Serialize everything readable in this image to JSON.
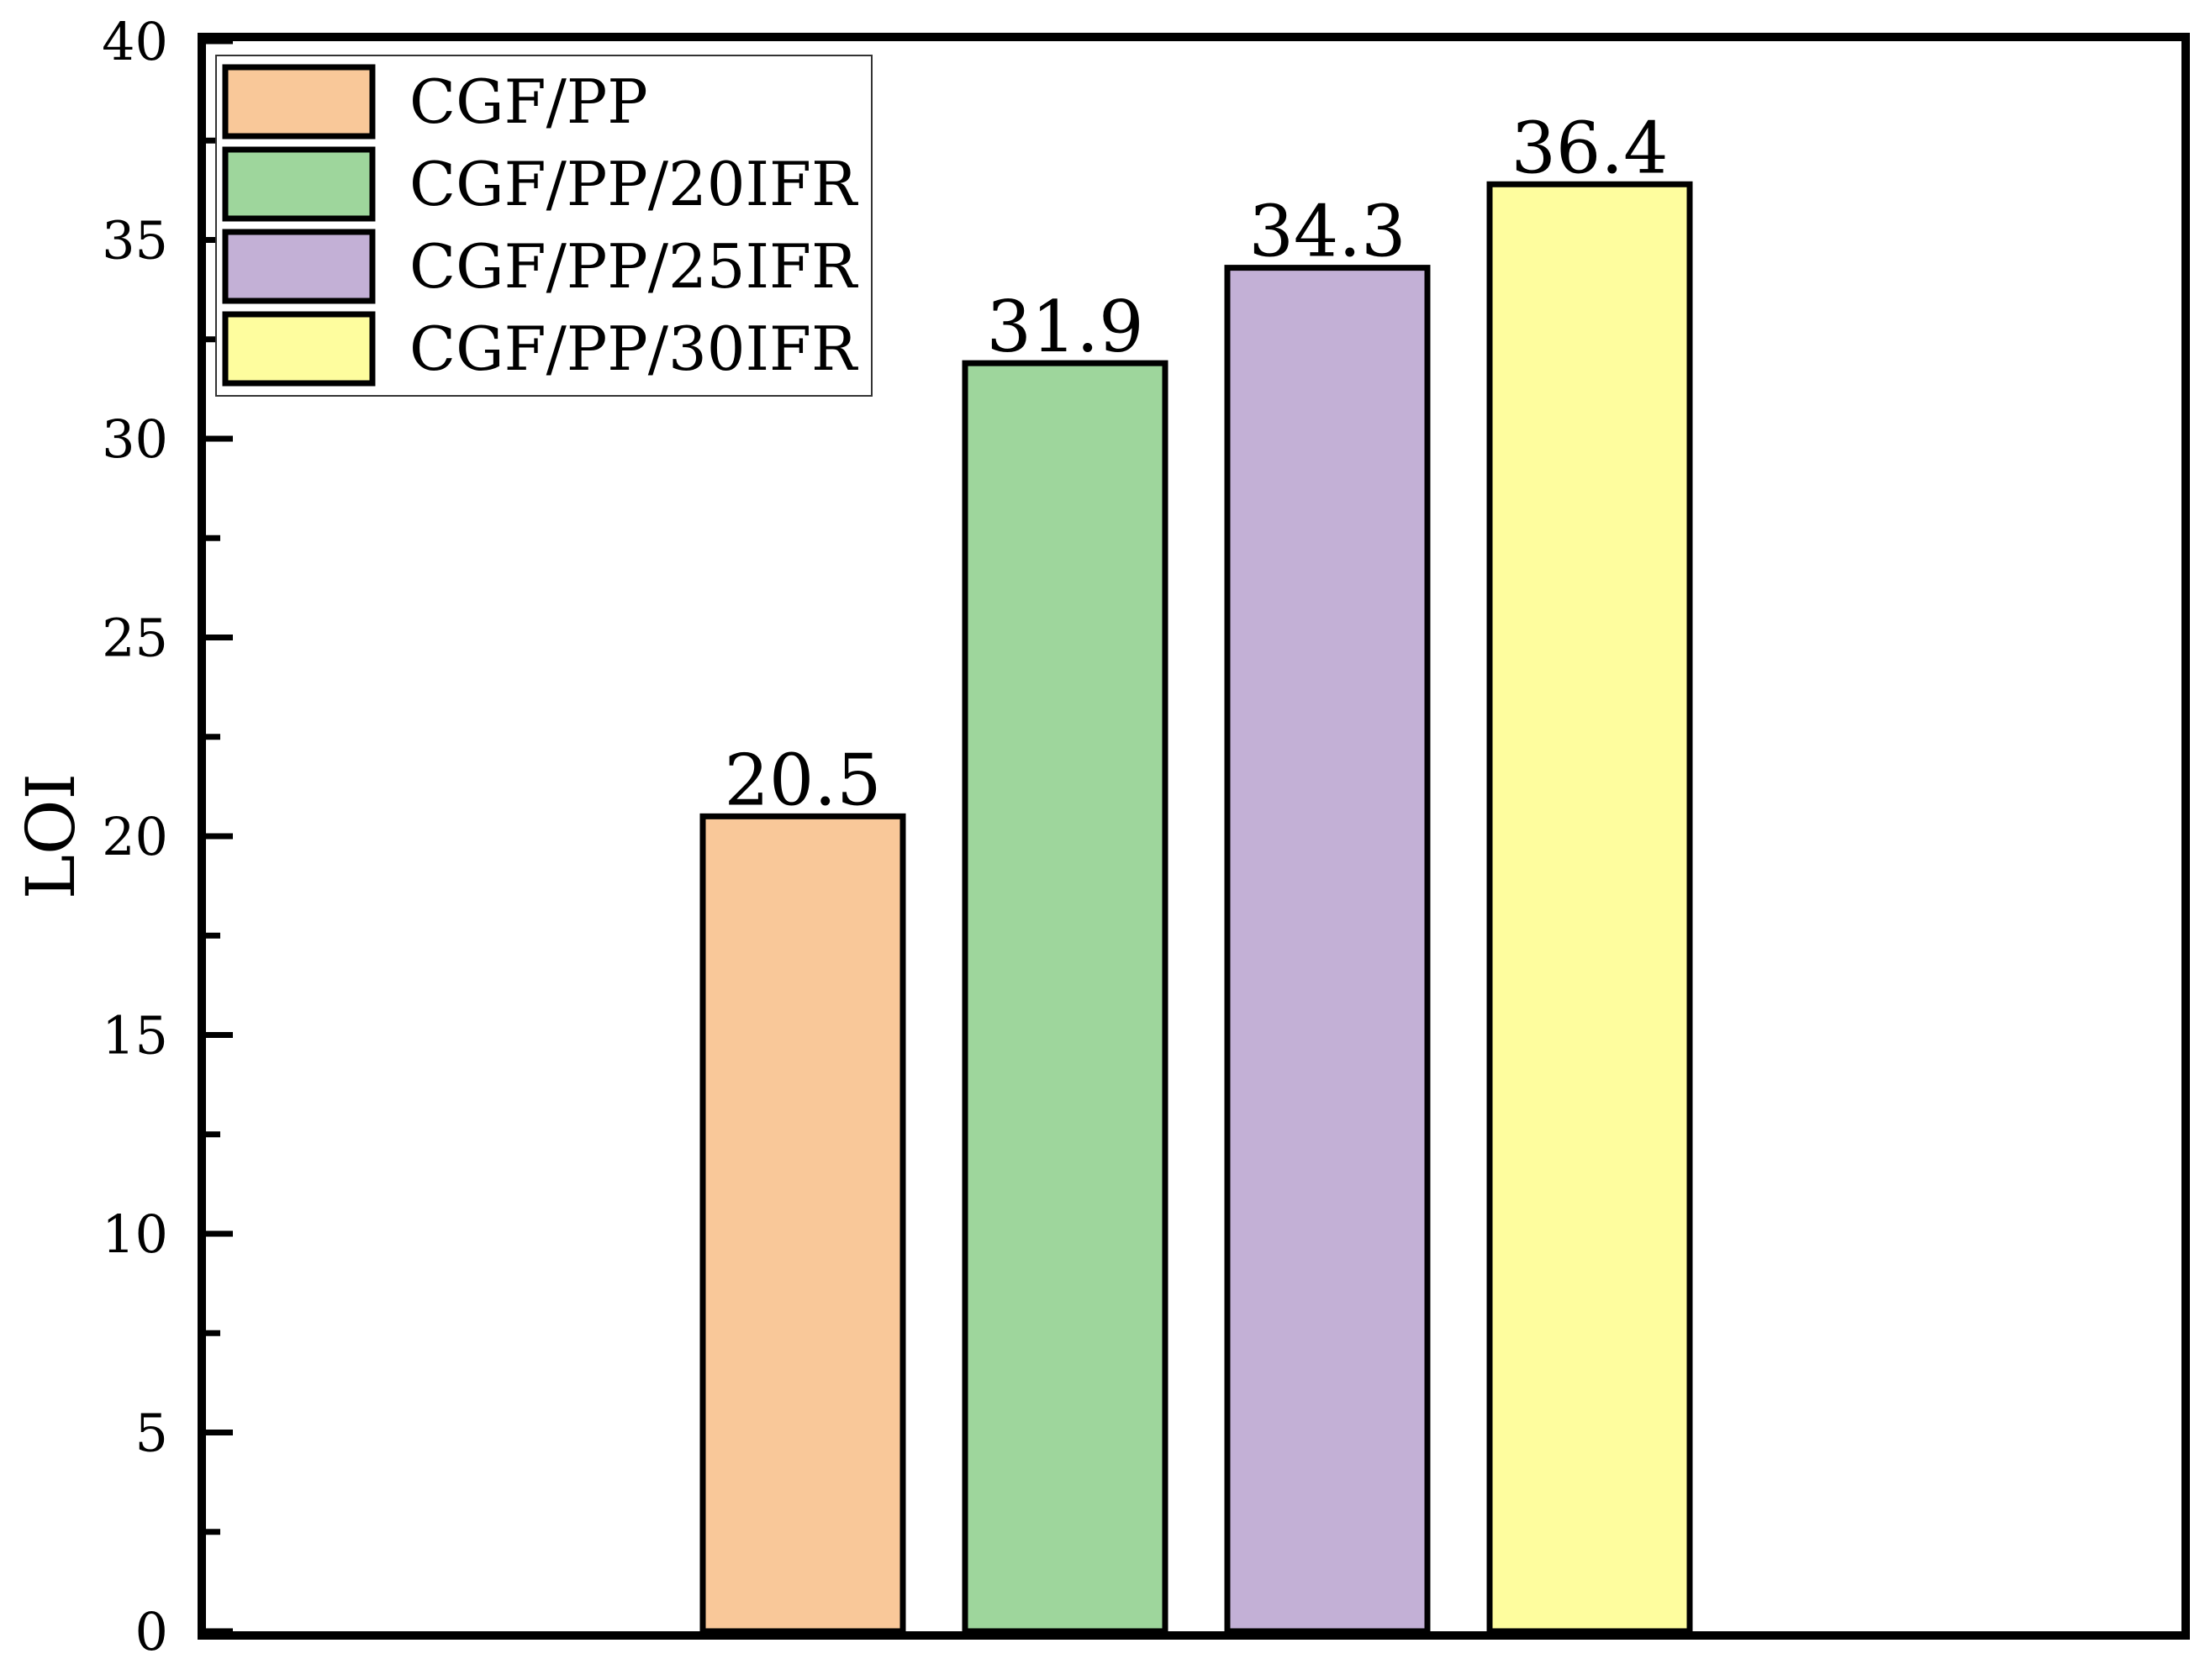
{
  "chart_data": {
    "type": "bar",
    "categories": [
      "CGF/PP",
      "CGF/PP/20IFR",
      "CGF/PP/25IFR",
      "CGF/PP/30IFR"
    ],
    "values": [
      20.5,
      31.9,
      34.3,
      36.4
    ],
    "value_labels": [
      "20.5",
      "31.9",
      "34.3",
      "36.4"
    ],
    "colors": [
      "#F9C899",
      "#9ED69C",
      "#C3B0D6",
      "#FEFD9E"
    ],
    "title": "",
    "xlabel": "",
    "ylabel": "LOI",
    "ylim": [
      0,
      40
    ],
    "yticks": [
      0,
      5,
      10,
      15,
      20,
      25,
      30,
      35,
      40
    ],
    "ytick_labels": [
      "0",
      "5",
      "10",
      "15",
      "20",
      "25",
      "30",
      "35",
      "40"
    ],
    "legend": {
      "placement": "top-left",
      "entries": [
        "CGF/PP",
        "CGF/PP/20IFR",
        "CGF/PP/25IFR",
        "CGF/PP/30IFR"
      ]
    },
    "grid": false
  }
}
